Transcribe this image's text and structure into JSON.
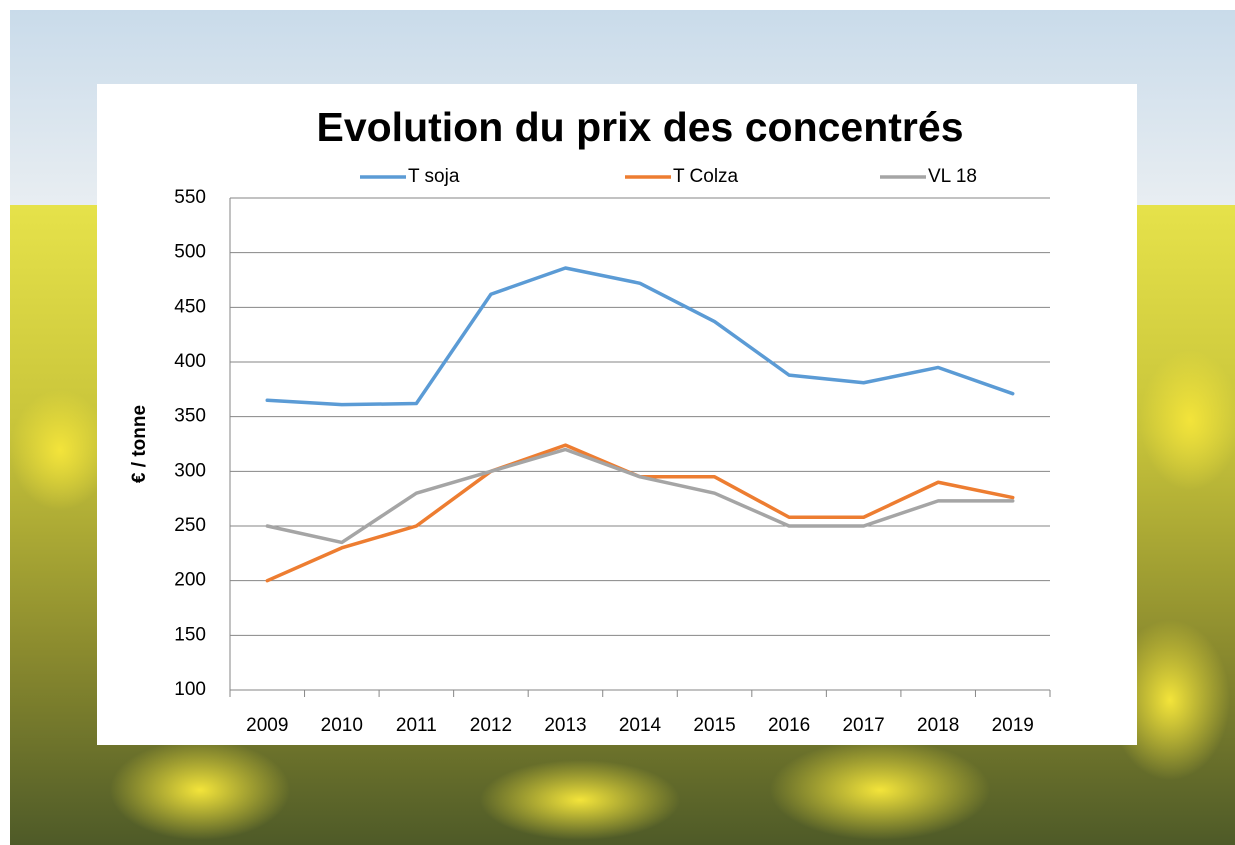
{
  "chart_data": {
    "type": "line",
    "title": "Evolution du prix des concentrés",
    "y_label": "€ / tonne",
    "categories": [
      "2009",
      "2010",
      "2011",
      "2012",
      "2013",
      "2014",
      "2015",
      "2016",
      "2017",
      "2018",
      "2019"
    ],
    "series": [
      {
        "name": "T soja",
        "color": "#5b9bd5",
        "values": [
          365,
          361,
          362,
          462,
          486,
          472,
          437,
          388,
          381,
          395,
          371
        ]
      },
      {
        "name": "T Colza",
        "color": "#ed7d31",
        "values": [
          200,
          230,
          250,
          300,
          324,
          295,
          295,
          258,
          258,
          290,
          276
        ]
      },
      {
        "name": "VL 18",
        "color": "#a5a5a5",
        "values": [
          250,
          235,
          280,
          300,
          320,
          295,
          280,
          250,
          250,
          273,
          273
        ]
      }
    ],
    "ylim": [
      100,
      550
    ],
    "yticks": [
      100,
      150,
      200,
      250,
      300,
      350,
      400,
      450,
      500,
      550
    ],
    "grid": true,
    "legend": "top"
  }
}
